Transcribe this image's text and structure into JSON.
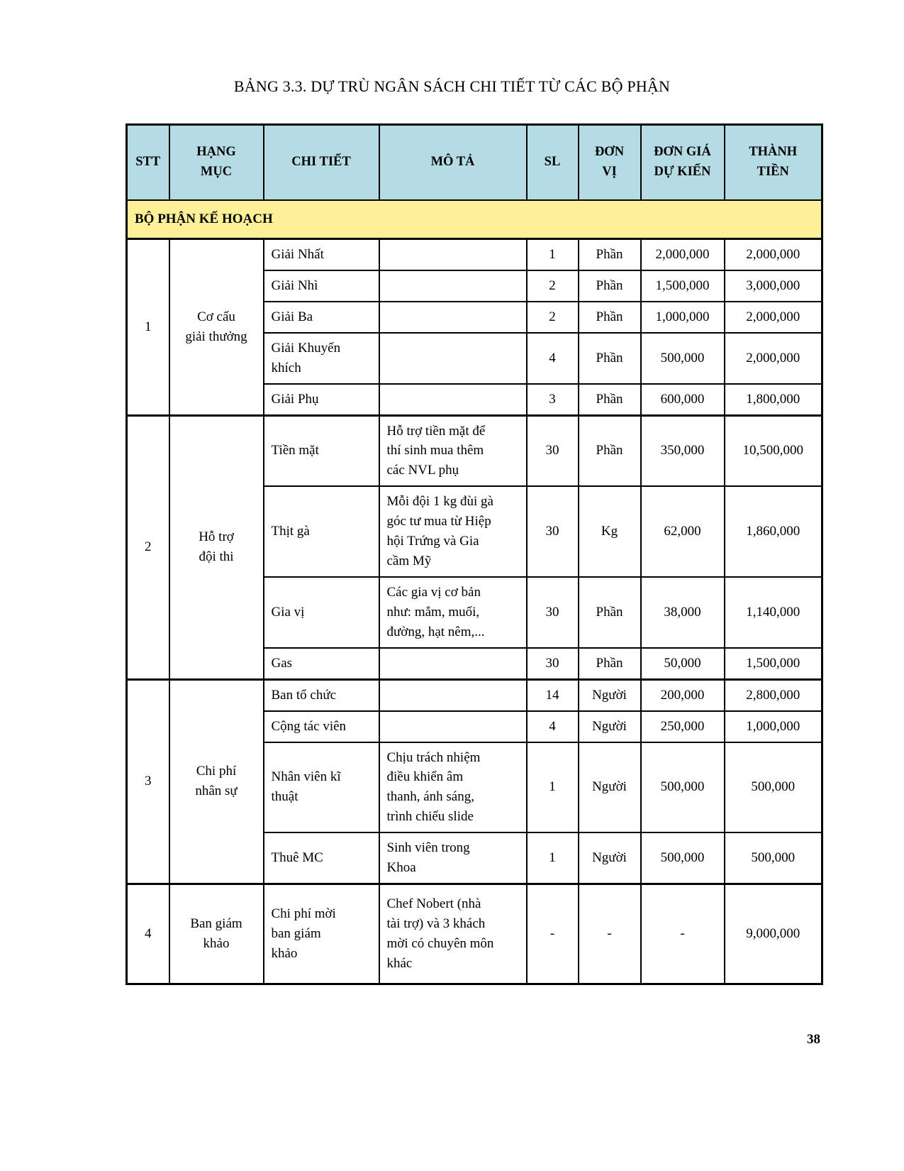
{
  "title": "BẢNG 3.3. DỰ TRÙ NGÂN SÁCH CHI TIẾT TỪ CÁC BỘ PHẬN",
  "page_number": "38",
  "colors": {
    "header_bg": "#b5dce4",
    "section_bg": "#fef099",
    "border": "#000000"
  },
  "table": {
    "columns": [
      {
        "key": "stt",
        "label": "STT"
      },
      {
        "key": "hang-muc",
        "label": "HẠNG\nMỤC"
      },
      {
        "key": "chi-tiet",
        "label": "CHI TIẾT"
      },
      {
        "key": "mo-ta",
        "label": "MÔ TẢ"
      },
      {
        "key": "sl",
        "label": "SL"
      },
      {
        "key": "don-vi",
        "label": "ĐƠN\nVỊ"
      },
      {
        "key": "don-gia",
        "label": "ĐƠN GIÁ\nDỰ KIẾN"
      },
      {
        "key": "thanh-tien",
        "label": "THÀNH\nTIỀN"
      }
    ],
    "section_banner": "BỘ PHẬN KẾ HOẠCH",
    "sections": [
      {
        "stt": "1",
        "category": "Cơ cấu\ngiải thưởng",
        "rows": [
          {
            "chi_tiet": "Giải Nhất",
            "mo_ta": "",
            "sl": "1",
            "don_vi": "Phần",
            "don_gia": "2,000,000",
            "thanh_tien": "2,000,000"
          },
          {
            "chi_tiet": "Giải Nhì",
            "mo_ta": "",
            "sl": "2",
            "don_vi": "Phần",
            "don_gia": "1,500,000",
            "thanh_tien": "3,000,000"
          },
          {
            "chi_tiet": "Giải Ba",
            "mo_ta": "",
            "sl": "2",
            "don_vi": "Phần",
            "don_gia": "1,000,000",
            "thanh_tien": "2,000,000"
          },
          {
            "chi_tiet": "Giải Khuyến\nkhích",
            "mo_ta": "",
            "sl": "4",
            "don_vi": "Phần",
            "don_gia": "500,000",
            "thanh_tien": "2,000,000"
          },
          {
            "chi_tiet": "Giải Phụ",
            "mo_ta": "",
            "sl": "3",
            "don_vi": "Phần",
            "don_gia": "600,000",
            "thanh_tien": "1,800,000"
          }
        ]
      },
      {
        "stt": "2",
        "category": "Hỗ trợ\nđội thi",
        "rows": [
          {
            "chi_tiet": "Tiền mặt",
            "mo_ta": "Hỗ trợ tiền mặt để\nthí sinh mua thêm\ncác NVL phụ",
            "sl": "30",
            "don_vi": "Phần",
            "don_gia": "350,000",
            "thanh_tien": "10,500,000"
          },
          {
            "chi_tiet": "Thịt gà",
            "mo_ta": "Mỗi đội 1 kg đùi gà\ngóc tư mua từ Hiệp\nhội Trứng và Gia\ncầm Mỹ",
            "sl": "30",
            "don_vi": "Kg",
            "don_gia": "62,000",
            "thanh_tien": "1,860,000"
          },
          {
            "chi_tiet": "Gia vị",
            "mo_ta": "Các gia vị cơ bản\nnhư: mắm, muối,\nđường, hạt nêm,...",
            "sl": "30",
            "don_vi": "Phần",
            "don_gia": "38,000",
            "thanh_tien": "1,140,000"
          },
          {
            "chi_tiet": "Gas",
            "mo_ta": "",
            "sl": "30",
            "don_vi": "Phần",
            "don_gia": "50,000",
            "thanh_tien": "1,500,000"
          }
        ]
      },
      {
        "stt": "3",
        "category": "Chi phí\nnhân sự",
        "rows": [
          {
            "chi_tiet": "Ban tổ chức",
            "mo_ta": "",
            "sl": "14",
            "don_vi": "Người",
            "don_gia": "200,000",
            "thanh_tien": "2,800,000"
          },
          {
            "chi_tiet": "Cộng tác viên",
            "mo_ta": "",
            "sl": "4",
            "don_vi": "Người",
            "don_gia": "250,000",
            "thanh_tien": "1,000,000"
          },
          {
            "chi_tiet": "Nhân viên kĩ\nthuật",
            "mo_ta": "Chịu trách nhiệm\nđiều khiển âm\nthanh, ánh sáng,\ntrình chiếu slide",
            "sl": "1",
            "don_vi": "Người",
            "don_gia": "500,000",
            "thanh_tien": "500,000"
          },
          {
            "chi_tiet": "Thuê MC",
            "mo_ta": "Sinh viên trong\nKhoa",
            "sl": "1",
            "don_vi": "Người",
            "don_gia": "500,000",
            "thanh_tien": "500,000"
          }
        ]
      },
      {
        "stt": "4",
        "category": "Ban giám\nkhảo",
        "rows": [
          {
            "chi_tiet": "Chi phí mời\nban giám\nkhảo",
            "mo_ta": "Chef Nobert (nhà\ntài trợ) và 3 khách\nmời có chuyên môn\nkhác",
            "sl": "-",
            "don_vi": "-",
            "don_gia": "-",
            "thanh_tien": "9,000,000"
          }
        ]
      }
    ]
  }
}
